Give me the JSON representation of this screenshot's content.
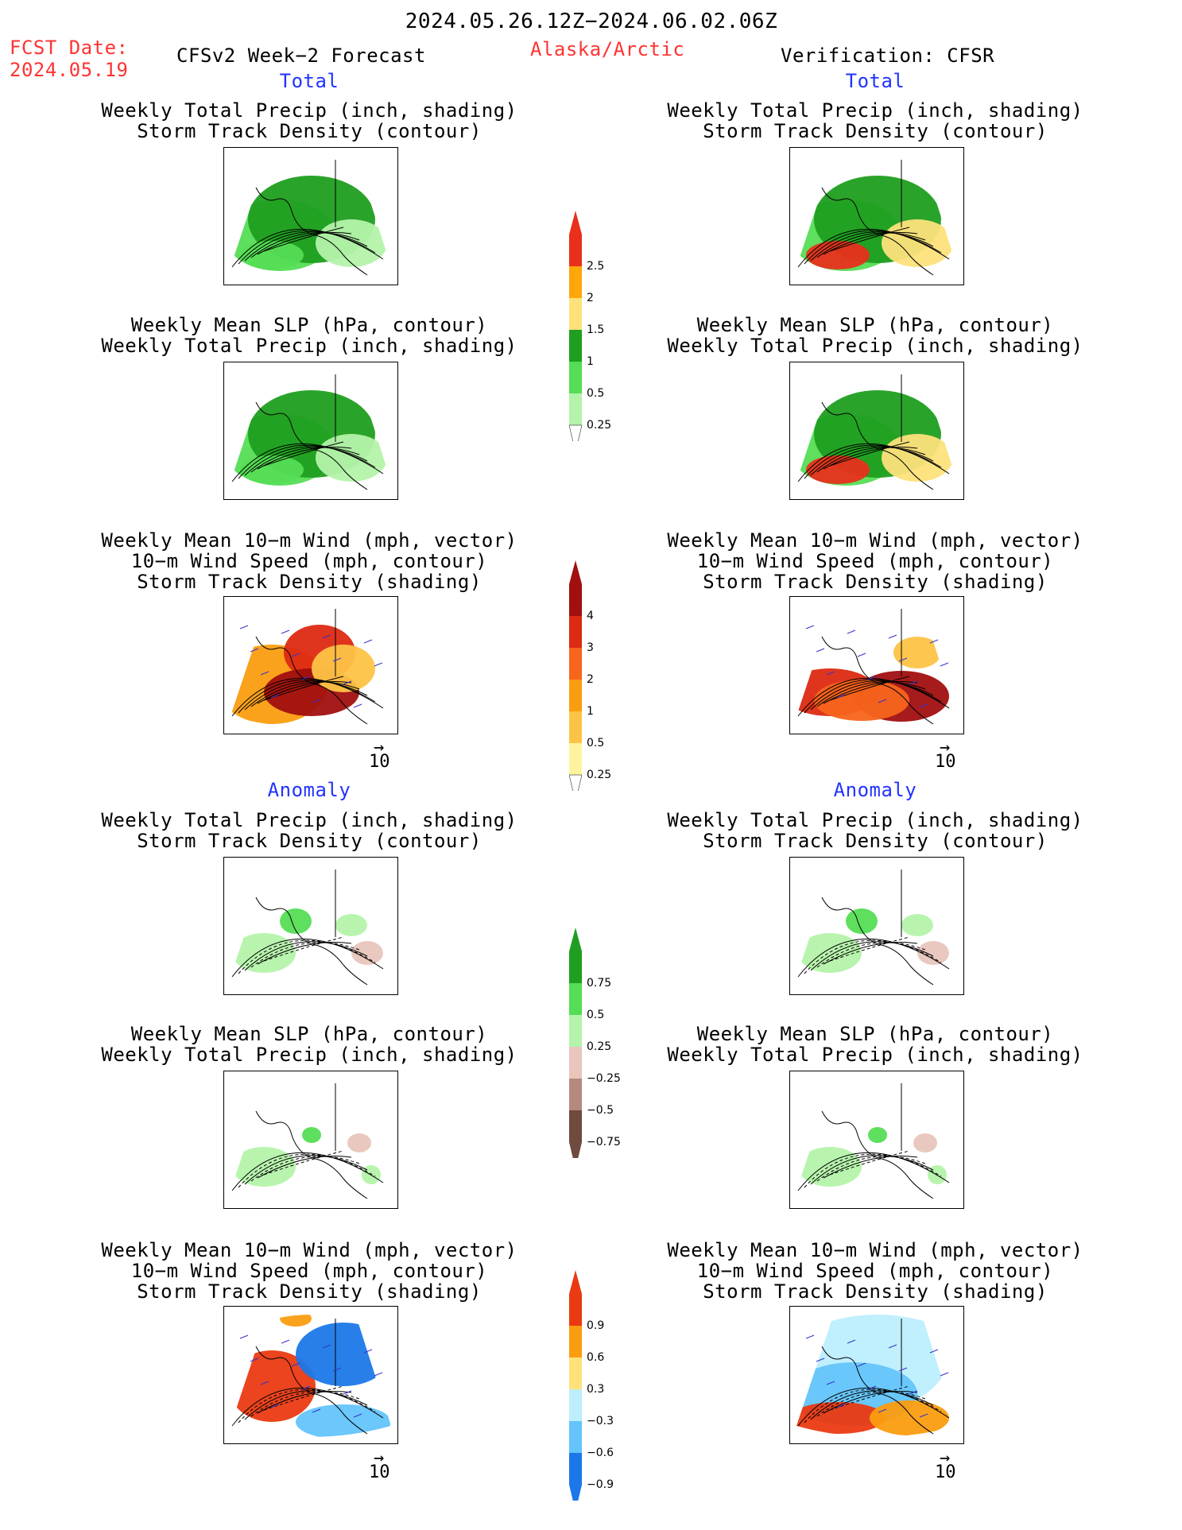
{
  "header": {
    "period": "2024.05.26.12Z−2024.06.02.06Z",
    "fcst_label": "FCST Date:",
    "fcst_date": "2024.05.19",
    "forecast_title": "CFSv2 Week−2 Forecast",
    "region": "Alaska/Arctic",
    "verification": "Verification: CFSR"
  },
  "sections": {
    "total": "Total",
    "anomaly": "Anomaly"
  },
  "captions": {
    "precip_storm": [
      "Weekly Total Precip (inch, shading)",
      "Storm Track Density (contour)"
    ],
    "slp_precip": [
      "Weekly Mean SLP (hPa, contour)",
      "Weekly Total Precip (inch, shading)"
    ],
    "wind_storm": [
      "Weekly Mean 10−m Wind (mph, vector)",
      "10−m Wind Speed (mph, contour)",
      "Storm Track Density (shading)"
    ]
  },
  "vector_ref": "10",
  "colorbars": {
    "precip_total": {
      "labels": [
        "2.5",
        "2",
        "1.5",
        "1",
        "0.5",
        "0.25"
      ],
      "colors": [
        "#e8301c",
        "#fda70a",
        "#fde27b",
        "#1f9e1f",
        "#55dd55",
        "#b4f3aa"
      ]
    },
    "storm_total": {
      "labels": [
        "4",
        "3",
        "2",
        "1",
        "0.5",
        "0.25"
      ],
      "colors": [
        "#a10f0f",
        "#dd2a12",
        "#f7651c",
        "#fb9d10",
        "#fdc346",
        "#fff3a0"
      ]
    },
    "precip_anom": {
      "labels": [
        "0.75",
        "0.5",
        "0.25",
        "−0.25",
        "−0.5",
        "−0.75"
      ],
      "colors": [
        "#1f9e1f",
        "#55dd55",
        "#b4f3aa",
        "#e8c6bc",
        "#b48a7e",
        "#6f4a3e"
      ]
    },
    "storm_anom": {
      "labels": [
        "0.9",
        "0.6",
        "0.3",
        "−0.3",
        "−0.6",
        "−0.9"
      ],
      "colors": [
        "#ea3a12",
        "#fb9d10",
        "#fde27b",
        "#bdeefe",
        "#64c4fb",
        "#1c78e8"
      ]
    }
  }
}
